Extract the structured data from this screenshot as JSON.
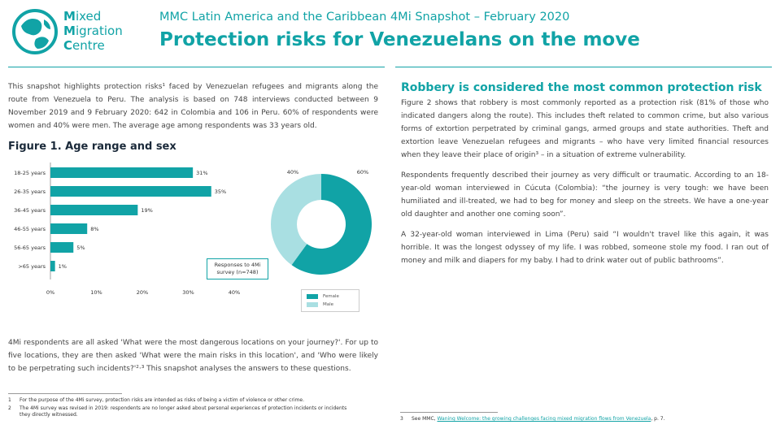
{
  "logo": {
    "line1_initial": "M",
    "line1_rest": "ixed",
    "line2_initial": "M",
    "line2_rest": "igration",
    "line3_initial": "C",
    "line3_rest": "entre"
  },
  "header": {
    "subtitle": "MMC Latin America and the Caribbean 4Mi Snapshot – February 2020",
    "title": "Protection risks for Venezuelans on the move"
  },
  "intro": "This snapshot highlights protection risks¹ faced by Venezuelan refugees and migrants along the route from Venezuela to Peru. The analysis is based on 748 interviews conducted between 9 November 2019 and 9 February 2020: 642 in Colombia and 106 in Peru. 60% of respondents were women and 40% were men. The average age among respondents was 33 years old.",
  "figure1": {
    "title": "Figure 1. Age range and sex",
    "respondents_note": "Responses to 4Mi survey (n=748)"
  },
  "chart_data": [
    {
      "type": "bar",
      "orientation": "horizontal",
      "categories": [
        "18-25 years",
        "26-35 years",
        "36-45 years",
        "46-55 years",
        "56-65 years",
        ">65 years"
      ],
      "values": [
        31,
        35,
        19,
        8,
        5,
        1
      ],
      "data_labels": [
        "31%",
        "35%",
        "19%",
        "8%",
        "5%",
        "1%"
      ],
      "xticks": [
        "0%",
        "10%",
        "20%",
        "30%",
        "40%"
      ],
      "xlim": [
        0,
        40
      ],
      "color": "#11a3a6"
    },
    {
      "type": "pie",
      "donut": true,
      "labels": [
        "Female",
        "Male"
      ],
      "values": [
        60,
        40
      ],
      "data_labels": [
        "60%",
        "40%"
      ],
      "colors": [
        "#11a3a6",
        "#a9dfe2"
      ],
      "legend": "bottom-right"
    }
  ],
  "para_4mi": "4Mi respondents are all asked 'What were the most dangerous locations on your journey?'. For up to five locations, they are then asked 'What were the main risks in this location', and 'Who were likely to be perpetrating such incidents?'²·³ This snapshot analyses the answers to these questions.",
  "footnotes": [
    {
      "num": "1",
      "text": "For the purpose of the 4Mi survey, protection risks are intended as risks of being a victim of violence or other crime."
    },
    {
      "num": "2",
      "text": "The 4Mi survey was revised in 2019: respondents are no longer asked about personal experiences of protection incidents or incidents"
    },
    {
      "num": "",
      "text": "they directly witnessed."
    }
  ],
  "right": {
    "heading": "Robbery is considered the most common protection risk",
    "p1": "Figure 2 shows that robbery is most commonly reported as a protection risk (81% of those who indicated dangers along the route). This includes theft related to common crime, but also various forms of extortion perpetrated by criminal gangs, armed groups and state authorities. Theft and extortion leave Venezuelan refugees and migrants – who have very limited financial resources when they leave their place of origin³ – in a situation of extreme vulnerability.",
    "p2": "Respondents frequently described their journey as very difficult or traumatic. According to an 18-year-old woman interviewed in Cúcuta (Colombia): “the journey is very tough: we have been humiliated and ill-treated, we had to beg for money and sleep on the streets. We have a one-year old daughter and another one coming soon”.",
    "p3": "A 32-year-old woman interviewed in Lima (Peru) said “I wouldn't travel like this again, it was horrible. It was the longest odyssey of my life. I was robbed, someone stole my food. I ran out of money and milk and diapers for my baby. I had to drink water out of public bathrooms”.",
    "fn3_num": "3",
    "fn3_prefix": "See MMC, ",
    "fn3_link": "Waning Welcome: the growing challenges facing mixed migration flows from Venezuela",
    "fn3_suffix": ", p. 7."
  }
}
